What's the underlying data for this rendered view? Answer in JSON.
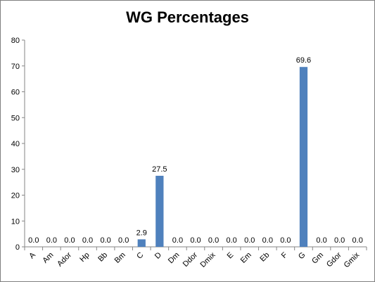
{
  "chart_data": {
    "type": "bar",
    "title": "WG Percentages",
    "categories": [
      "A",
      "Am",
      "Ador",
      "Hp",
      "Bb",
      "Bm",
      "C",
      "D",
      "Dm",
      "Ddor",
      "Dmix",
      "E",
      "Em",
      "Eb",
      "F",
      "G",
      "Gm",
      "Gdor",
      "Gmix"
    ],
    "values": [
      0.0,
      0.0,
      0.0,
      0.0,
      0.0,
      0.0,
      2.9,
      27.5,
      0.0,
      0.0,
      0.0,
      0.0,
      0.0,
      0.0,
      0.0,
      69.6,
      0.0,
      0.0,
      0.0
    ],
    "data_labels": [
      "0.0",
      "0.0",
      "0.0",
      "0.0",
      "0.0",
      "0.0",
      "2.9",
      "27.5",
      "0.0",
      "0.0",
      "0.0",
      "0.0",
      "0.0",
      "0.0",
      "0.0",
      "69.6",
      "0.0",
      "0.0",
      "0.0"
    ],
    "ylim": [
      0,
      80
    ],
    "yticks": [
      "0",
      "10",
      "20",
      "30",
      "40",
      "50",
      "60",
      "70",
      "80"
    ],
    "grid": false,
    "legend": "none",
    "bar_color": "#4f81bd"
  }
}
